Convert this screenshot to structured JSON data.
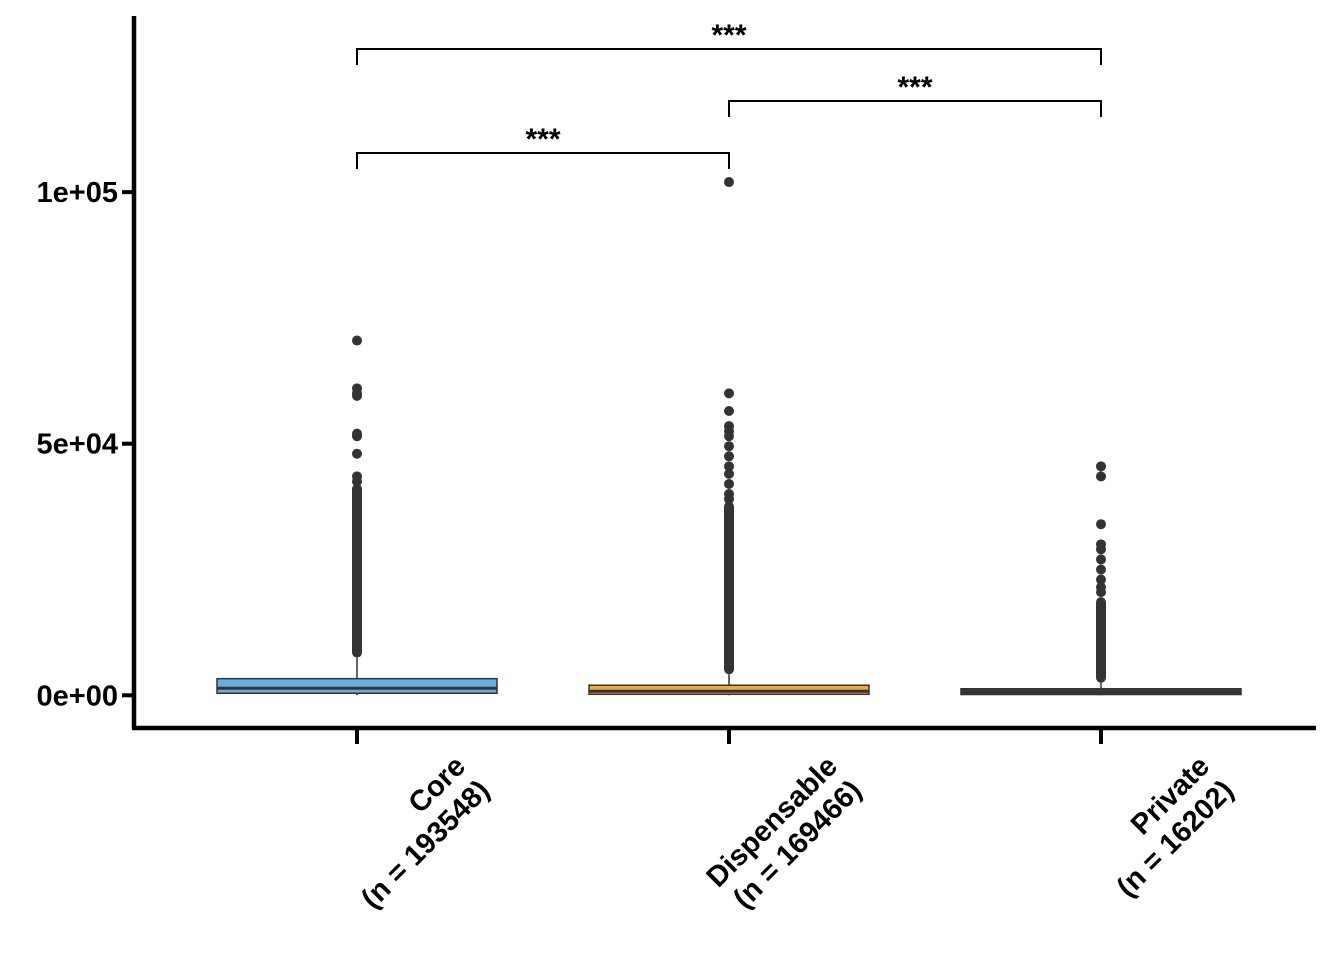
{
  "chart_data": {
    "type": "box",
    "title": "",
    "xlabel": "",
    "ylabel": "",
    "ylim": [
      -6500,
      135000
    ],
    "yticks": [
      {
        "value": 0,
        "label": "0e+00"
      },
      {
        "value": 50000,
        "label": "5e+04"
      },
      {
        "value": 100000,
        "label": "1e+05"
      }
    ],
    "categories": [
      {
        "label_line1": "Core",
        "label_line2": "(n = 193548)",
        "color": "#6aaede"
      },
      {
        "label_line1": "Dispensable",
        "label_line2": "(n = 169466)",
        "color": "#f2a93b"
      },
      {
        "label_line1": "Private",
        "label_line2": "(n = 16202)",
        "color": "#3a3540"
      }
    ],
    "boxes": [
      {
        "q1": 400,
        "median": 1400,
        "q3": 3300,
        "whisker_low": 0,
        "whisker_high": 7500,
        "outliers": [
          70500,
          61000,
          60000,
          59500,
          52000,
          51500,
          48000,
          43500,
          42500
        ]
      },
      {
        "q1": 200,
        "median": 800,
        "q3": 2000,
        "whisker_low": 0,
        "whisker_high": 4200,
        "outliers": [
          102000,
          60000,
          56500,
          53500,
          52500,
          51500,
          49500,
          47500,
          45500,
          44000,
          42000,
          40000,
          39000
        ]
      },
      {
        "q1": 150,
        "median": 550,
        "q3": 1300,
        "whisker_low": 0,
        "whisker_high": 2500,
        "outliers": [
          45500,
          43500,
          34000,
          30000,
          29000,
          27000,
          25000,
          23000,
          21500,
          20500
        ]
      }
    ],
    "outlier_dense_ranges": [
      {
        "from": 7500,
        "to": 42000
      },
      {
        "from": 4200,
        "to": 38500
      },
      {
        "from": 2500,
        "to": 19500
      }
    ],
    "comparisons": [
      {
        "from": 0,
        "to": 1,
        "label": "***"
      },
      {
        "from": 1,
        "to": 2,
        "label": "***"
      },
      {
        "from": 0,
        "to": 2,
        "label": "***"
      }
    ],
    "grid": false,
    "legend": "none"
  }
}
